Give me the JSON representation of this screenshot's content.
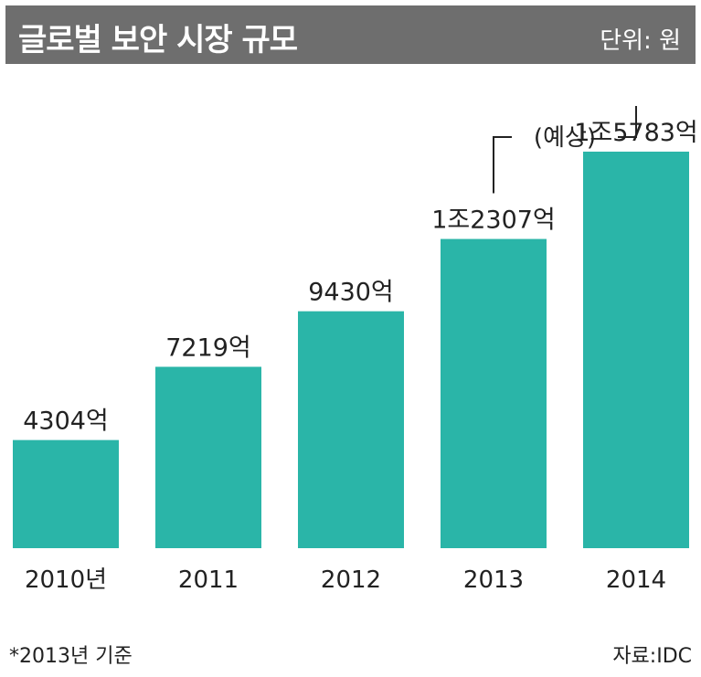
{
  "header": {
    "title": "글로벌 보안 시장 규모",
    "unit": "단위: 원"
  },
  "chart_data": {
    "type": "bar",
    "categories": [
      "2010년",
      "2011",
      "2012",
      "2013",
      "2014"
    ],
    "values": [
      4304,
      7219,
      9430,
      12307,
      15783
    ],
    "value_labels": [
      "4304억",
      "7219억",
      "9430억",
      "1조2307억",
      "1조5783억"
    ],
    "ylim": [
      0,
      16000
    ],
    "annotations": [
      {
        "text": "(예상)",
        "applies_to": [
          "2013",
          "2014"
        ]
      }
    ],
    "grid": false,
    "bar_color": "#2ab5a8"
  },
  "footer": {
    "note": "*2013년 기준",
    "source": "자료:IDC"
  }
}
